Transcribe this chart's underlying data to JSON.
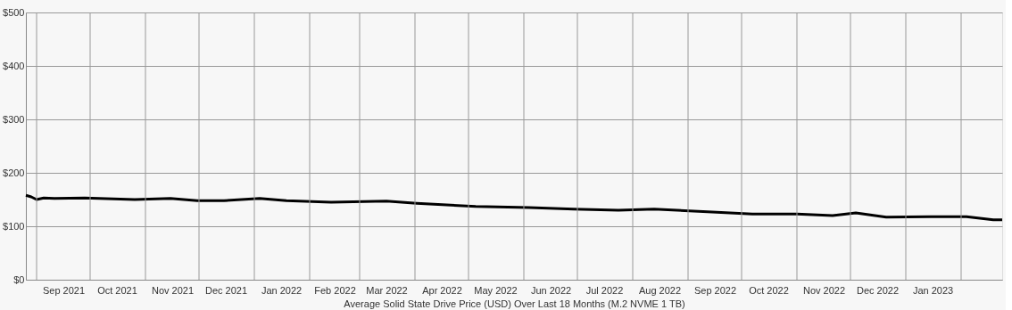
{
  "chart_data": {
    "type": "line",
    "xlabel": "Average Solid State Drive Price (USD) Over Last 18 Months (M.2 NVME 1 TB)",
    "x": [
      "2021-08-26",
      "2021-08-29",
      "2021-09-01",
      "2021-09-05",
      "2021-09-11",
      "2021-09-28",
      "2021-10-26",
      "2021-11-15",
      "2021-11-30",
      "2021-12-15",
      "2022-01-04",
      "2022-01-19",
      "2022-02-13",
      "2022-03-16",
      "2022-04-02",
      "2022-05-05",
      "2022-06-04",
      "2022-06-29",
      "2022-07-24",
      "2022-08-13",
      "2022-09-12",
      "2022-10-07",
      "2022-11-01",
      "2022-11-21",
      "2022-12-04",
      "2022-12-21",
      "2023-01-15",
      "2023-02-04",
      "2023-02-19",
      "2023-02-24"
    ],
    "series": [
      {
        "color": "#000000",
        "values": [
          158,
          155,
          150,
          153,
          152,
          153,
          150,
          152,
          148,
          148,
          152,
          148,
          145,
          147,
          143,
          137,
          135,
          132,
          130,
          132,
          127,
          123,
          123,
          120,
          125,
          117,
          118,
          118,
          112,
          112
        ]
      }
    ],
    "xlim": [
      "2021-08-26",
      "2023-02-24"
    ],
    "xticks": [
      {
        "value": "2021-09-01",
        "label": null
      },
      {
        "value": "2021-09-16",
        "label": "Sep 2021"
      },
      {
        "value": "2021-10-01",
        "label": null
      },
      {
        "value": "2021-10-16",
        "label": "Oct 2021"
      },
      {
        "value": "2021-11-01",
        "label": null
      },
      {
        "value": "2021-11-16",
        "label": "Nov 2021"
      },
      {
        "value": "2021-12-01",
        "label": null
      },
      {
        "value": "2021-12-16",
        "label": "Dec 2021"
      },
      {
        "value": "2022-01-01",
        "label": null
      },
      {
        "value": "2022-01-16",
        "label": "Jan 2022"
      },
      {
        "value": "2022-02-01",
        "label": null
      },
      {
        "value": "2022-02-15",
        "label": "Feb 2022"
      },
      {
        "value": "2022-03-01",
        "label": null
      },
      {
        "value": "2022-03-16",
        "label": "Mar 2022"
      },
      {
        "value": "2022-04-01",
        "label": null
      },
      {
        "value": "2022-04-16",
        "label": "Apr 2022"
      },
      {
        "value": "2022-05-01",
        "label": null
      },
      {
        "value": "2022-05-16",
        "label": "May 2022"
      },
      {
        "value": "2022-06-01",
        "label": null
      },
      {
        "value": "2022-06-16",
        "label": "Jun 2022"
      },
      {
        "value": "2022-07-01",
        "label": null
      },
      {
        "value": "2022-07-16",
        "label": "Jul 2022"
      },
      {
        "value": "2022-08-01",
        "label": null
      },
      {
        "value": "2022-08-16",
        "label": "Aug 2022"
      },
      {
        "value": "2022-09-01",
        "label": null
      },
      {
        "value": "2022-09-16",
        "label": "Sep 2022"
      },
      {
        "value": "2022-10-01",
        "label": null
      },
      {
        "value": "2022-10-16",
        "label": "Oct 2022"
      },
      {
        "value": "2022-11-01",
        "label": null
      },
      {
        "value": "2022-11-16",
        "label": "Nov 2022"
      },
      {
        "value": "2022-12-01",
        "label": null
      },
      {
        "value": "2022-12-16",
        "label": "Dec 2022"
      },
      {
        "value": "2023-01-01",
        "label": null
      },
      {
        "value": "2023-01-16",
        "label": "Jan 2023"
      },
      {
        "value": "2023-02-01",
        "label": null
      }
    ],
    "ylim": [
      0,
      500
    ],
    "yticks": [
      {
        "value": 0,
        "label": "$0"
      },
      {
        "value": 100,
        "label": "$100"
      },
      {
        "value": 200,
        "label": "$200"
      },
      {
        "value": 300,
        "label": "$300"
      },
      {
        "value": 400,
        "label": "$400"
      },
      {
        "value": 500,
        "label": "$500"
      }
    ],
    "grid": true,
    "marker": "none",
    "line_style": "solid",
    "legend": false
  }
}
